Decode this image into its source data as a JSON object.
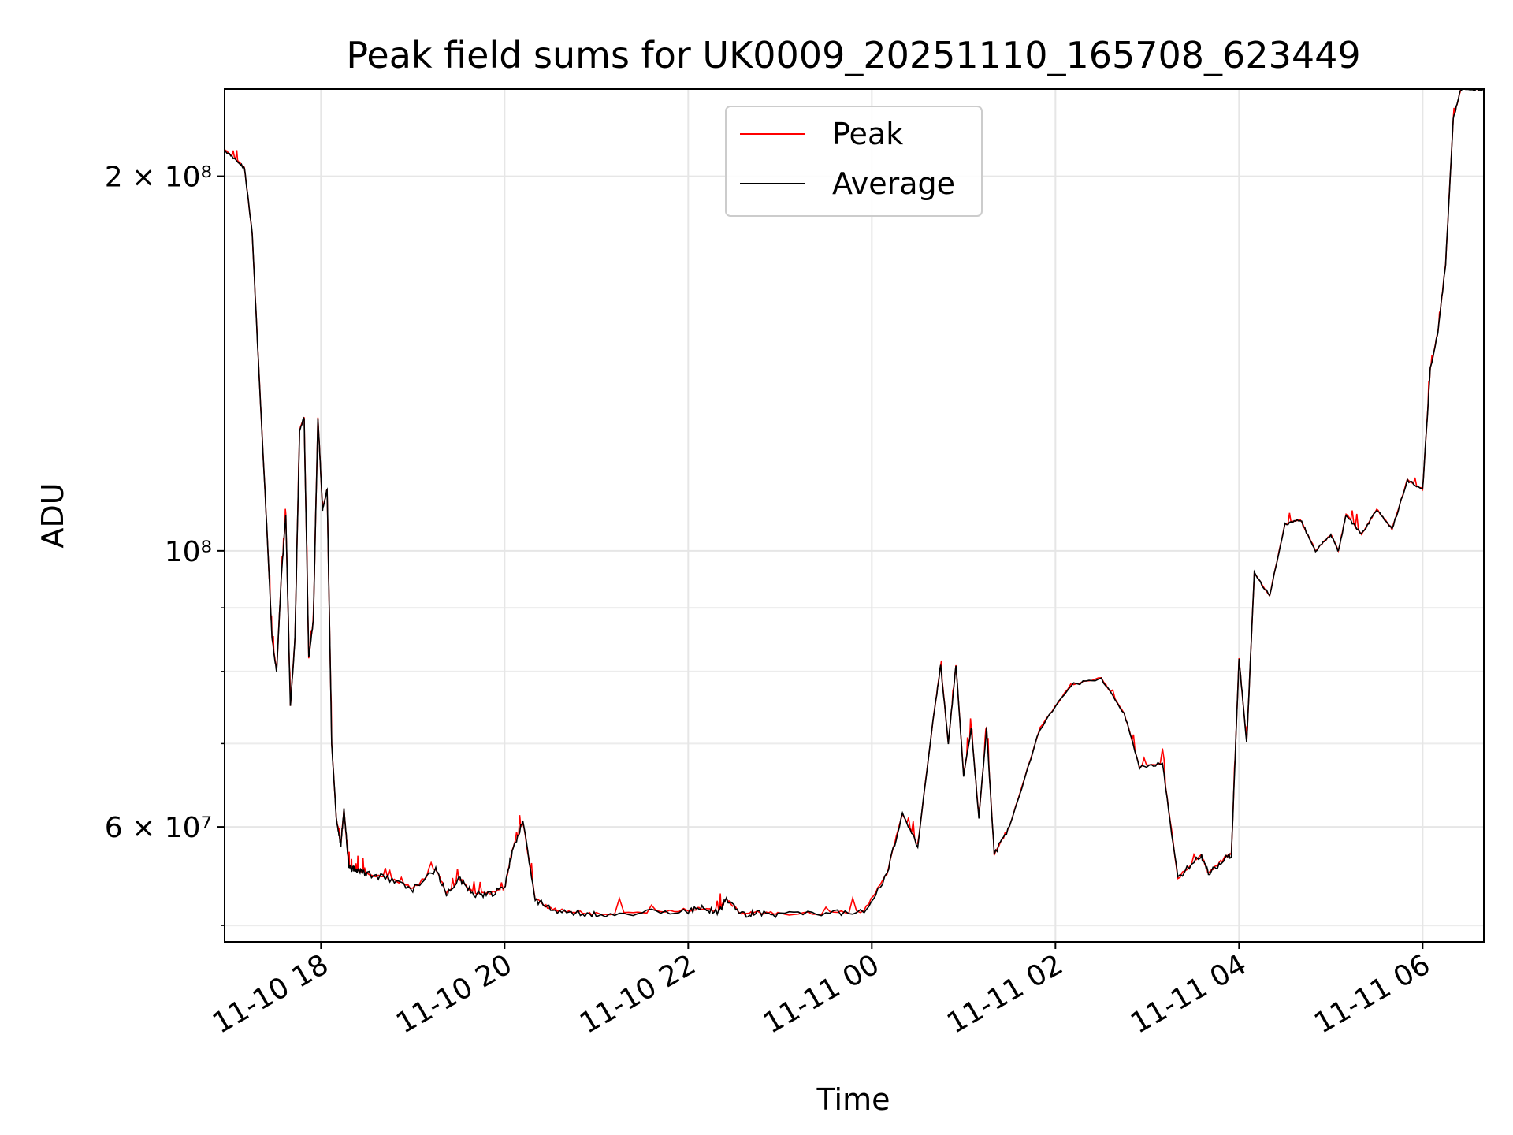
{
  "chart_data": {
    "type": "line",
    "title": "Peak field sums for UK0009_20251110_165708_623449",
    "xlabel": "Time",
    "ylabel": "ADU",
    "y_scale": "log",
    "ylim": [
      48500000,
      235000000
    ],
    "xlim": [
      "2025-11-10 16:57",
      "2025-11-11 06:40"
    ],
    "grid": true,
    "legend_position": "top-center",
    "y_ticks": [
      {
        "value": 200000000,
        "label": "2 × 10⁸"
      },
      {
        "value": 100000000,
        "label": "10⁸"
      },
      {
        "value": 60000000,
        "label": "6 × 10⁷"
      }
    ],
    "y_minor_ticks": [
      50000000,
      70000000,
      80000000,
      90000000
    ],
    "x_ticks": [
      {
        "value": "2025-11-10 18:00",
        "label": "11-10 18"
      },
      {
        "value": "2025-11-10 20:00",
        "label": "11-10 20"
      },
      {
        "value": "2025-11-10 22:00",
        "label": "11-10 22"
      },
      {
        "value": "2025-11-11 00:00",
        "label": "11-11 00"
      },
      {
        "value": "2025-11-11 02:00",
        "label": "11-11 02"
      },
      {
        "value": "2025-11-11 04:00",
        "label": "11-11 04"
      },
      {
        "value": "2025-11-11 06:00",
        "label": "11-11 06"
      }
    ],
    "series": [
      {
        "name": "Peak",
        "color": "#ff0000"
      },
      {
        "name": "Average",
        "color": "#000000"
      }
    ],
    "x": [
      "2025-11-10 16:57",
      "2025-11-10 17:05",
      "2025-11-10 17:10",
      "2025-11-10 17:15",
      "2025-11-10 17:20",
      "2025-11-10 17:25",
      "2025-11-10 17:28",
      "2025-11-10 17:31",
      "2025-11-10 17:34",
      "2025-11-10 17:37",
      "2025-11-10 17:40",
      "2025-11-10 17:43",
      "2025-11-10 17:46",
      "2025-11-10 17:49",
      "2025-11-10 17:52",
      "2025-11-10 17:55",
      "2025-11-10 17:58",
      "2025-11-10 18:01",
      "2025-11-10 18:04",
      "2025-11-10 18:07",
      "2025-11-10 18:10",
      "2025-11-10 18:13",
      "2025-11-10 18:15",
      "2025-11-10 18:18",
      "2025-11-10 18:20",
      "2025-11-10 18:22",
      "2025-11-10 18:25",
      "2025-11-10 18:30",
      "2025-11-10 18:45",
      "2025-11-10 19:00",
      "2025-11-10 19:15",
      "2025-11-10 19:22",
      "2025-11-10 19:30",
      "2025-11-10 19:40",
      "2025-11-10 19:50",
      "2025-11-10 20:00",
      "2025-11-10 20:05",
      "2025-11-10 20:12",
      "2025-11-10 20:20",
      "2025-11-10 20:30",
      "2025-11-10 20:45",
      "2025-11-10 21:00",
      "2025-11-10 21:30",
      "2025-11-10 22:00",
      "2025-11-10 22:10",
      "2025-11-10 22:20",
      "2025-11-10 22:25",
      "2025-11-10 22:35",
      "2025-11-10 22:45",
      "2025-11-10 23:00",
      "2025-11-10 23:30",
      "2025-11-10 23:55",
      "2025-11-11 00:10",
      "2025-11-11 00:20",
      "2025-11-11 00:30",
      "2025-11-11 00:40",
      "2025-11-11 00:45",
      "2025-11-11 00:50",
      "2025-11-11 00:55",
      "2025-11-11 01:00",
      "2025-11-11 01:05",
      "2025-11-11 01:10",
      "2025-11-11 01:15",
      "2025-11-11 01:20",
      "2025-11-11 01:30",
      "2025-11-11 01:50",
      "2025-11-11 02:10",
      "2025-11-11 02:30",
      "2025-11-11 02:45",
      "2025-11-11 02:55",
      "2025-11-11 03:10",
      "2025-11-11 03:20",
      "2025-11-11 03:35",
      "2025-11-11 03:40",
      "2025-11-11 03:50",
      "2025-11-11 03:55",
      "2025-11-11 04:00",
      "2025-11-11 04:05",
      "2025-11-11 04:10",
      "2025-11-11 04:20",
      "2025-11-11 04:30",
      "2025-11-11 04:40",
      "2025-11-11 04:50",
      "2025-11-11 05:00",
      "2025-11-11 05:05",
      "2025-11-11 05:10",
      "2025-11-11 05:20",
      "2025-11-11 05:30",
      "2025-11-11 05:40",
      "2025-11-11 05:50",
      "2025-11-11 06:00",
      "2025-11-11 06:05",
      "2025-11-11 06:10",
      "2025-11-11 06:15",
      "2025-11-11 06:20",
      "2025-11-11 06:25",
      "2025-11-11 06:40"
    ],
    "values": [
      210000000,
      206000000,
      203000000,
      180000000,
      135000000,
      102000000,
      85000000,
      80000000,
      95000000,
      107000000,
      75000000,
      85000000,
      125000000,
      128000000,
      82000000,
      88000000,
      128000000,
      108000000,
      112000000,
      70000000,
      61000000,
      58000000,
      62000000,
      56000000,
      55500000,
      55500000,
      55300000,
      55000000,
      54500000,
      53500000,
      55500000,
      53000000,
      54500000,
      53000000,
      53000000,
      53500000,
      57500000,
      60500000,
      52500000,
      51500000,
      51200000,
      51000000,
      51200000,
      51400000,
      51600000,
      51300000,
      52500000,
      51000000,
      51200000,
      51000000,
      51100000,
      51300000,
      55000000,
      61500000,
      58000000,
      73000000,
      81000000,
      70000000,
      81000000,
      66000000,
      72000000,
      61000000,
      72000000,
      57000000,
      60000000,
      72000000,
      78000000,
      79000000,
      74000000,
      67000000,
      67500000,
      54500000,
      57000000,
      55000000,
      56500000,
      57000000,
      82000000,
      70000000,
      96000000,
      92000000,
      105000000,
      106000000,
      100000000,
      103000000,
      100000000,
      107000000,
      103000000,
      108000000,
      104000000,
      114000000,
      112000000,
      140000000,
      150000000,
      170000000,
      222000000,
      235000000,
      235000000
    ]
  }
}
